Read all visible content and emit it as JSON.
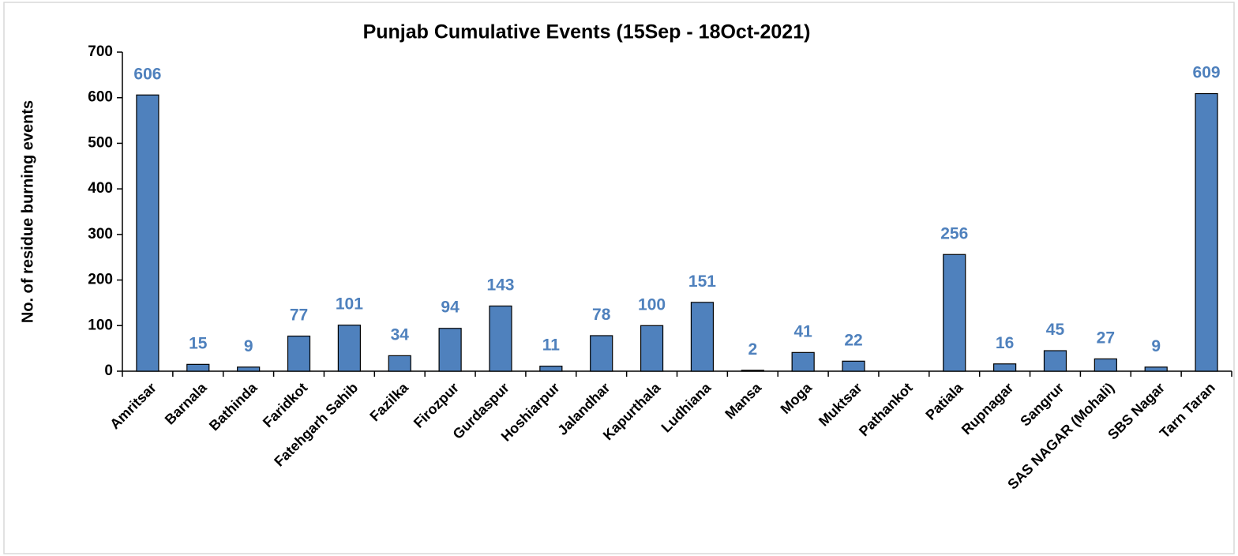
{
  "chart_data": {
    "type": "bar",
    "title": "Punjab Cumulative Events (15Sep - 18Oct-2021)",
    "y_label": "No. of residue burning events",
    "categories": [
      "Amritsar",
      "Barnala",
      "Bathinda",
      "Faridkot",
      "Fatehgarh Sahib",
      "Fazilka",
      "Firozpur",
      "Gurdaspur",
      "Hoshiarpur",
      "Jalandhar",
      "Kapurthala",
      "Ludhiana",
      "Mansa",
      "Moga",
      "Muktsar",
      "Pathankot",
      "Patiala",
      "Rupnagar",
      "Sangrur",
      "SAS NAGAR (Mohali)",
      "SBS Nagar",
      "Tarn Taran"
    ],
    "values": [
      606,
      15,
      9,
      77,
      101,
      34,
      94,
      143,
      11,
      78,
      100,
      151,
      2,
      41,
      22,
      null,
      256,
      16,
      45,
      27,
      9,
      609
    ],
    "color": "#4f81bd",
    "ylim": [
      0,
      700
    ],
    "yticks": [
      0,
      100,
      200,
      300,
      400,
      500,
      600,
      700
    ],
    "grid": false
  }
}
